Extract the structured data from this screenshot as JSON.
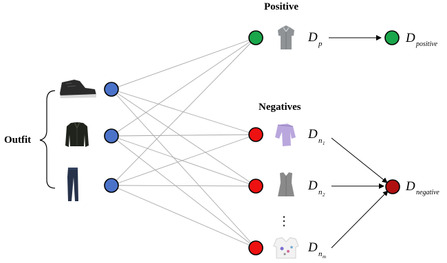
{
  "labels": {
    "outfit": "Outfit",
    "positive": "Positive",
    "negatives": "Negatives",
    "ellipsis": "⋮"
  },
  "outfit_items": [
    {
      "name": "sneaker",
      "color": "#2b2b2b"
    },
    {
      "name": "jacket",
      "color": "#1f231b"
    },
    {
      "name": "jeans",
      "color": "#26324a"
    }
  ],
  "candidates": [
    {
      "name": "gray-shirt",
      "role": "positive",
      "dist_symbol": "D",
      "dist_sub": "p",
      "dist_subsub": "",
      "node_color": "#1aa64a"
    },
    {
      "name": "lavender-top",
      "role": "negative",
      "dist_symbol": "D",
      "dist_sub": "n",
      "dist_subsub": "1",
      "node_color": "#ee1111"
    },
    {
      "name": "gray-top",
      "role": "negative",
      "dist_symbol": "D",
      "dist_sub": "n",
      "dist_subsub": "2",
      "node_color": "#ee1111"
    },
    {
      "name": "white-print-top",
      "role": "negative",
      "dist_symbol": "D",
      "dist_sub": "n",
      "dist_subsub": "m",
      "node_color": "#ee1111"
    }
  ],
  "aggregates": {
    "positive": {
      "symbol": "D",
      "sub": "positive",
      "node_color": "#1aa64a"
    },
    "negative": {
      "symbol": "D",
      "sub": "negative",
      "node_color": "#b01010"
    }
  },
  "colors": {
    "outfit_node": "#4a72c8",
    "edge": "#a8a8a8",
    "arrow": "#000000"
  }
}
